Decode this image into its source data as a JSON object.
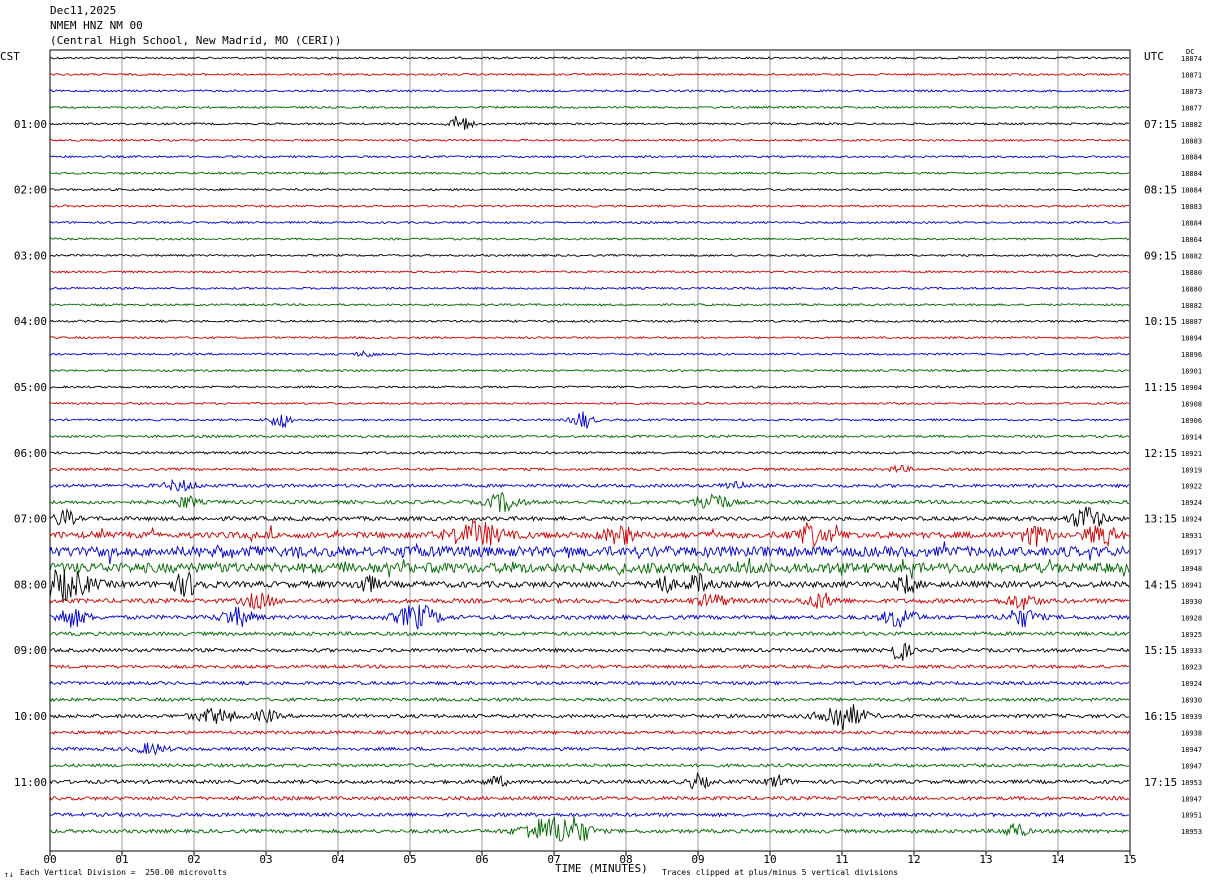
{
  "header": {
    "date": "Dec11,2025",
    "station": "NMEM HNZ NM 00",
    "location": "(Central High School, New Madrid, MO (CERI))"
  },
  "left_axis_title": "CST",
  "right_axis_title": "UTC",
  "dc_title": "DC",
  "footer": {
    "scale_note": "Each Vertical Division =  250.00 microvolts",
    "clip_note": "Traces clipped at plus/minus 5 vertical divisions",
    "corner_mark": "↑↓"
  },
  "chart_data": {
    "type": "line",
    "title": "NMEM HNZ NM 00",
    "xlabel": "TIME (MINUTES)",
    "ylabel": "",
    "x_ticks": [
      "00",
      "01",
      "02",
      "03",
      "04",
      "05",
      "06",
      "07",
      "08",
      "09",
      "10",
      "11",
      "12",
      "13",
      "14",
      "15"
    ],
    "xlim": [
      0,
      15
    ],
    "rows": 48,
    "row_minutes": 15,
    "trace_colors": [
      "#000000",
      "#cc0000",
      "#0000cc",
      "#006600"
    ],
    "left_labels": [
      {
        "row": 4,
        "text": "01:00"
      },
      {
        "row": 8,
        "text": "02:00"
      },
      {
        "row": 12,
        "text": "03:00"
      },
      {
        "row": 16,
        "text": "04:00"
      },
      {
        "row": 20,
        "text": "05:00"
      },
      {
        "row": 24,
        "text": "06:00"
      },
      {
        "row": 28,
        "text": "07:00"
      },
      {
        "row": 32,
        "text": "08:00"
      },
      {
        "row": 36,
        "text": "09:00"
      },
      {
        "row": 40,
        "text": "10:00"
      },
      {
        "row": 44,
        "text": "11:00"
      }
    ],
    "right_labels": [
      {
        "row": 4,
        "text": "07:15"
      },
      {
        "row": 8,
        "text": "08:15"
      },
      {
        "row": 12,
        "text": "09:15"
      },
      {
        "row": 16,
        "text": "10:15"
      },
      {
        "row": 20,
        "text": "11:15"
      },
      {
        "row": 24,
        "text": "12:15"
      },
      {
        "row": 28,
        "text": "13:15"
      },
      {
        "row": 32,
        "text": "14:15"
      },
      {
        "row": 36,
        "text": "15:15"
      },
      {
        "row": 40,
        "text": "16:15"
      },
      {
        "row": 44,
        "text": "17:15"
      }
    ],
    "dc_values": [
      "18874",
      "18871",
      "18873",
      "18877",
      "18882",
      "18883",
      "18884",
      "18884",
      "18884",
      "18883",
      "18884",
      "18864",
      "18882",
      "18880",
      "18880",
      "18882",
      "18887",
      "18894",
      "18896",
      "18901",
      "18904",
      "18908",
      "18906",
      "18914",
      "18921",
      "18919",
      "18922",
      "18924",
      "18924",
      "18931",
      "18917",
      "18948",
      "18941",
      "18930",
      "18928",
      "18925",
      "18933",
      "18923",
      "18924",
      "18930",
      "18939",
      "18938",
      "18947",
      "18947",
      "18953",
      "18947",
      "18951",
      "18953"
    ],
    "noise_levels": [
      1,
      1,
      1,
      1,
      1,
      1,
      1,
      1,
      1,
      1,
      1,
      1,
      1,
      1,
      1,
      1,
      1,
      1,
      1,
      1,
      1,
      1,
      1,
      1.2,
      1.2,
      1.3,
      1.6,
      1.8,
      2,
      3,
      5,
      5,
      3,
      2.2,
      2,
      1.8,
      1.8,
      1.6,
      1.6,
      1.6,
      1.8,
      1.6,
      1.6,
      1.6,
      1.8,
      1.8,
      1.8,
      1.8
    ],
    "events": [
      {
        "row": 4,
        "minute": 5.7,
        "amp": 9,
        "dur": 0.2
      },
      {
        "row": 18,
        "minute": 4.4,
        "amp": 3,
        "dur": 0.2
      },
      {
        "row": 22,
        "minute": 3.2,
        "amp": 8,
        "dur": 0.2
      },
      {
        "row": 22,
        "minute": 7.4,
        "amp": 9,
        "dur": 0.2
      },
      {
        "row": 25,
        "minute": 11.8,
        "amp": 3,
        "dur": 0.2
      },
      {
        "row": 26,
        "minute": 1.8,
        "amp": 5,
        "dur": 0.3
      },
      {
        "row": 26,
        "minute": 9.5,
        "amp": 5,
        "dur": 0.2
      },
      {
        "row": 27,
        "minute": 1.9,
        "amp": 6,
        "dur": 0.2
      },
      {
        "row": 27,
        "minute": 6.3,
        "amp": 9,
        "dur": 0.3
      },
      {
        "row": 27,
        "minute": 9.2,
        "amp": 10,
        "dur": 0.3
      },
      {
        "row": 28,
        "minute": 14.4,
        "amp": 12,
        "dur": 0.3
      },
      {
        "row": 28,
        "minute": 0.2,
        "amp": 8,
        "dur": 0.2
      },
      {
        "row": 29,
        "minute": 5.9,
        "amp": 12,
        "dur": 0.5
      },
      {
        "row": 29,
        "minute": 7.9,
        "amp": 9,
        "dur": 0.3
      },
      {
        "row": 29,
        "minute": 10.6,
        "amp": 8,
        "dur": 0.4
      },
      {
        "row": 29,
        "minute": 13.7,
        "amp": 9,
        "dur": 0.3
      },
      {
        "row": 29,
        "minute": 14.6,
        "amp": 10,
        "dur": 0.3
      },
      {
        "row": 32,
        "minute": 0.2,
        "amp": 14,
        "dur": 0.5
      },
      {
        "row": 32,
        "minute": 1.9,
        "amp": 10,
        "dur": 0.3
      },
      {
        "row": 32,
        "minute": 4.4,
        "amp": 8,
        "dur": 0.2
      },
      {
        "row": 32,
        "minute": 8.5,
        "amp": 9,
        "dur": 0.2
      },
      {
        "row": 32,
        "minute": 9.0,
        "amp": 9,
        "dur": 0.2
      },
      {
        "row": 32,
        "minute": 11.9,
        "amp": 8,
        "dur": 0.2
      },
      {
        "row": 33,
        "minute": 2.9,
        "amp": 7,
        "dur": 0.3
      },
      {
        "row": 33,
        "minute": 9.2,
        "amp": 6,
        "dur": 0.3
      },
      {
        "row": 33,
        "minute": 10.7,
        "amp": 7,
        "dur": 0.3
      },
      {
        "row": 33,
        "minute": 13.5,
        "amp": 7,
        "dur": 0.3
      },
      {
        "row": 34,
        "minute": 0.3,
        "amp": 9,
        "dur": 0.3
      },
      {
        "row": 34,
        "minute": 2.6,
        "amp": 9,
        "dur": 0.3
      },
      {
        "row": 34,
        "minute": 5.1,
        "amp": 12,
        "dur": 0.4
      },
      {
        "row": 34,
        "minute": 11.8,
        "amp": 10,
        "dur": 0.3
      },
      {
        "row": 34,
        "minute": 13.5,
        "amp": 9,
        "dur": 0.3
      },
      {
        "row": 36,
        "minute": 11.8,
        "amp": 10,
        "dur": 0.2
      },
      {
        "row": 40,
        "minute": 2.3,
        "amp": 7,
        "dur": 0.4
      },
      {
        "row": 40,
        "minute": 3.0,
        "amp": 6,
        "dur": 0.2
      },
      {
        "row": 40,
        "minute": 11.0,
        "amp": 14,
        "dur": 0.4
      },
      {
        "row": 42,
        "minute": 1.4,
        "amp": 5,
        "dur": 0.3
      },
      {
        "row": 44,
        "minute": 6.2,
        "amp": 5,
        "dur": 0.2
      },
      {
        "row": 44,
        "minute": 9.0,
        "amp": 7,
        "dur": 0.2
      },
      {
        "row": 44,
        "minute": 10.1,
        "amp": 6,
        "dur": 0.2
      },
      {
        "row": 47,
        "minute": 6.9,
        "amp": 12,
        "dur": 0.5
      },
      {
        "row": 47,
        "minute": 7.3,
        "amp": 11,
        "dur": 0.3
      },
      {
        "row": 47,
        "minute": 13.4,
        "amp": 8,
        "dur": 0.2
      }
    ]
  }
}
